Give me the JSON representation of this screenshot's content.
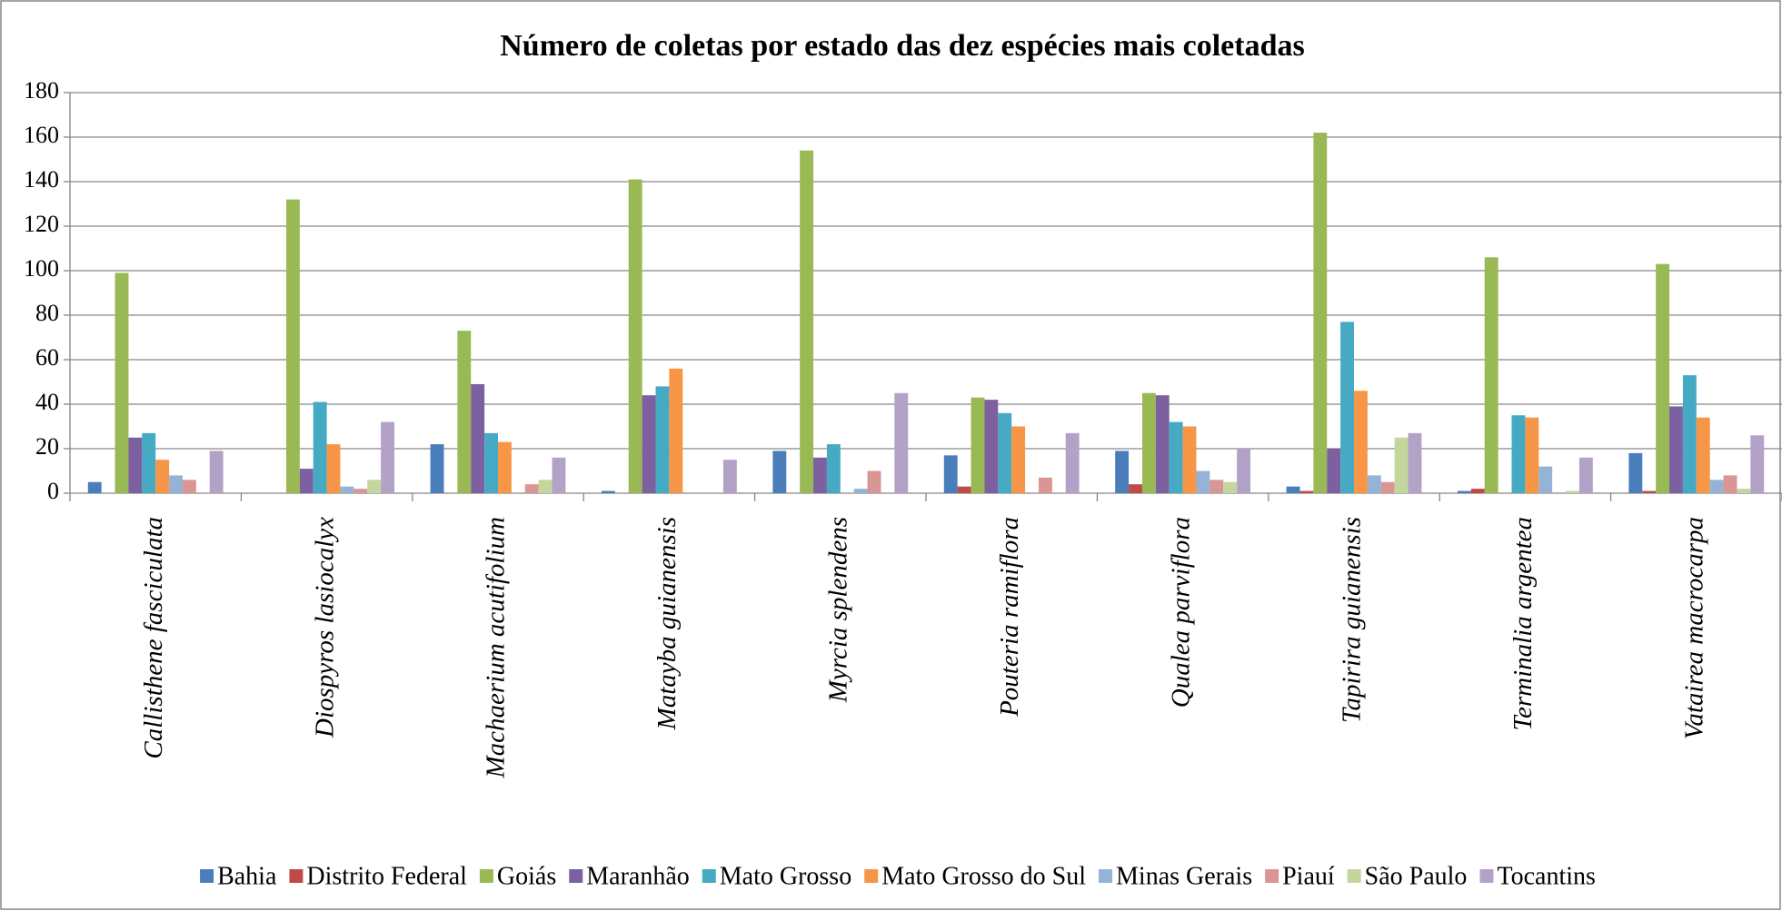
{
  "chart_data": {
    "type": "bar",
    "title": "Número de coletas por estado das dez espécies mais coletadas",
    "categories": [
      "Callisthene fasciculata",
      "Diospyros lasiocalyx",
      "Machaerium acutifolium",
      "Matayba guianensis",
      "Myrcia splendens",
      "Pouteria ramiflora",
      "Qualea parviflora",
      "Tapirira guianensis",
      "Terminalia argentea",
      "Vatairea macrocarpa"
    ],
    "series": [
      {
        "name": "Bahia",
        "color": "#4a7ebb",
        "values": [
          5,
          0,
          22,
          1,
          19,
          17,
          19,
          3,
          1,
          18
        ]
      },
      {
        "name": "Distrito Federal",
        "color": "#be4b48",
        "values": [
          0,
          0,
          0,
          0,
          0,
          3,
          4,
          1,
          2,
          1
        ]
      },
      {
        "name": "Goiás",
        "color": "#98b954",
        "values": [
          99,
          132,
          73,
          141,
          154,
          43,
          45,
          162,
          106,
          103
        ]
      },
      {
        "name": "Maranhão",
        "color": "#7d60a0",
        "values": [
          25,
          11,
          49,
          44,
          16,
          42,
          44,
          20,
          0,
          39
        ]
      },
      {
        "name": "Mato Grosso",
        "color": "#46aac5",
        "values": [
          27,
          41,
          27,
          48,
          22,
          36,
          32,
          77,
          35,
          53
        ]
      },
      {
        "name": "Mato Grosso do Sul",
        "color": "#f79646",
        "values": [
          15,
          22,
          23,
          56,
          0,
          30,
          30,
          46,
          34,
          34
        ]
      },
      {
        "name": "Minas Gerais",
        "color": "#95b3d7",
        "values": [
          8,
          3,
          0,
          0,
          2,
          0,
          10,
          8,
          12,
          6
        ]
      },
      {
        "name": "Piauí",
        "color": "#d99694",
        "values": [
          6,
          2,
          4,
          0,
          10,
          7,
          6,
          5,
          0,
          8
        ]
      },
      {
        "name": "São Paulo",
        "color": "#c3d69b",
        "values": [
          0,
          6,
          6,
          0,
          0,
          0,
          5,
          25,
          1,
          2
        ]
      },
      {
        "name": "Tocantins",
        "color": "#b3a2c7",
        "values": [
          19,
          32,
          16,
          15,
          45,
          27,
          20,
          27,
          16,
          26
        ]
      }
    ],
    "ylim": [
      0,
      180
    ],
    "yticks": [
      0,
      20,
      40,
      60,
      80,
      100,
      120,
      140,
      160,
      180
    ],
    "grid": true
  }
}
